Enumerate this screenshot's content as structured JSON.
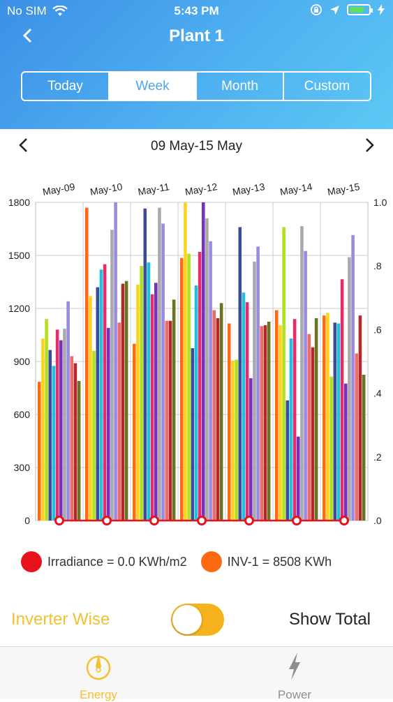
{
  "status_bar": {
    "carrier": "No SIM",
    "time": "5:43 PM"
  },
  "header": {
    "title": "Plant 1"
  },
  "segments": [
    {
      "label": "Today",
      "active": false
    },
    {
      "label": "Week",
      "active": true
    },
    {
      "label": "Month",
      "active": false
    },
    {
      "label": "Custom",
      "active": false
    }
  ],
  "date_range": "09 May-15 May",
  "chart_data": {
    "type": "bar",
    "categories": [
      "May-09",
      "May-10",
      "May-11",
      "May-12",
      "May-13",
      "May-14",
      "May-15"
    ],
    "y_left_ticks": [
      "1800",
      "1500",
      "1200",
      "900",
      "600",
      "300",
      "0"
    ],
    "y_right_ticks": [
      "1.0",
      ".8",
      ".6",
      ".4",
      ".2",
      ".0"
    ],
    "ylim_left": [
      0,
      1800
    ],
    "ylim_right": [
      0,
      1.0
    ],
    "bar_colors": [
      "#fe6a14",
      "#ffd21a",
      "#b3e01e",
      "#3a4c9a",
      "#1ec0df",
      "#e52c6a",
      "#7a2fbe",
      "#a9a9a9",
      "#9a8ae0",
      "#ee6a6a",
      "#b12a2a",
      "#6a7320"
    ],
    "values": [
      [
        785,
        1030,
        1140,
        965,
        875,
        1080,
        1020,
        1085,
        1240,
        930,
        890,
        790
      ],
      [
        1770,
        1270,
        960,
        1320,
        1420,
        1450,
        1090,
        1645,
        1820,
        1120,
        1340,
        1355
      ],
      [
        1000,
        1335,
        1440,
        1765,
        1460,
        1280,
        1345,
        1770,
        1680,
        1130,
        1130,
        1250
      ],
      [
        1485,
        1800,
        1510,
        975,
        1330,
        1520,
        1810,
        1710,
        1580,
        1190,
        1145,
        1230
      ],
      [
        1115,
        905,
        910,
        1660,
        1290,
        1235,
        805,
        1465,
        1550,
        1100,
        1105,
        1125
      ],
      [
        1190,
        1105,
        1660,
        680,
        1030,
        1140,
        475,
        1665,
        1525,
        1055,
        980,
        1145
      ],
      [
        1160,
        1175,
        815,
        1120,
        1115,
        1365,
        775,
        1490,
        1615,
        945,
        1160,
        825
      ]
    ],
    "irradiance": [
      0,
      0,
      0,
      0,
      0,
      0,
      0
    ]
  },
  "legend": [
    {
      "label": "Irradiance = 0.0 KWh/m2",
      "color": "#e8121c"
    },
    {
      "label": "INV-1 = 8508 KWh",
      "color": "#fe6a14"
    }
  ],
  "toggle": {
    "left_label": "Inverter Wise",
    "right_label": "Show Total"
  },
  "tabs": [
    {
      "label": "Energy",
      "active": true
    },
    {
      "label": "Power",
      "active": false
    }
  ],
  "colors": {
    "accent": "#f6b21c",
    "tab_active": "#f4c030",
    "tab_inactive": "#8e8e8e"
  }
}
